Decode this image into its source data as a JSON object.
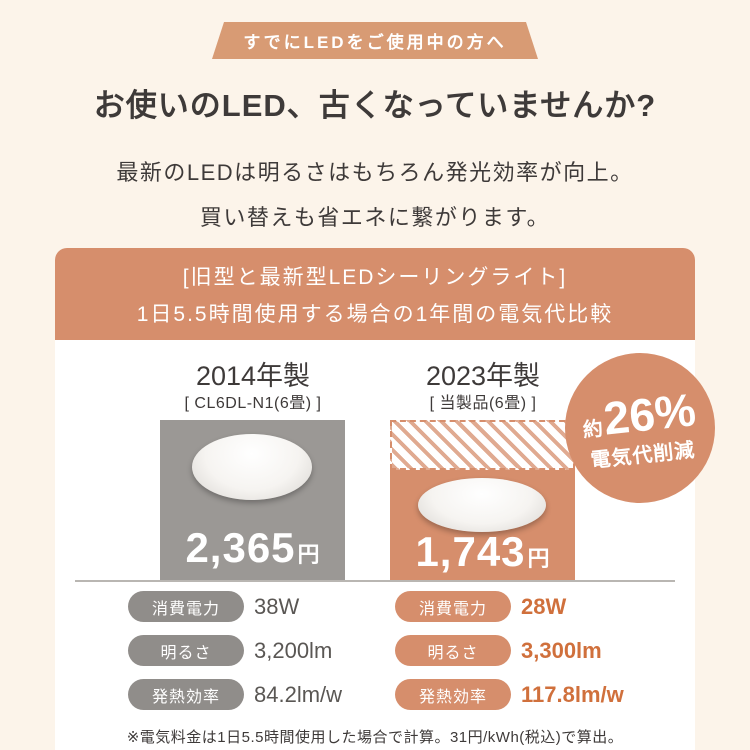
{
  "colors": {
    "background": "#fcf4ea",
    "accent": "#d68e6c",
    "old_gray": "#9b9895",
    "value_orange": "#d0703c"
  },
  "ribbon": {
    "label": "すでにLEDをご使用中の方へ"
  },
  "heading": {
    "title": "お使いのLED、古くなっていませんか?"
  },
  "intro": {
    "line1": "最新のLEDは明るさはもちろん発光効率が向上。",
    "line2": "買い替えも省エネに繋がります。"
  },
  "comparison": {
    "header_line1": "[旧型と最新型LEDシーリングライト]",
    "header_line2": "1日5.5時間使用する場合の1年間の電気代比較",
    "old": {
      "year_label": "2014年製",
      "model": "[ CL6DL-N1(6畳) ]",
      "price_value": "2,365",
      "price_unit": "円",
      "specs": [
        {
          "label": "消費電力",
          "value": "38W"
        },
        {
          "label": "明るさ",
          "value": "3,200lm"
        },
        {
          "label": "発熱効率",
          "value": "84.2lm/w"
        }
      ]
    },
    "new": {
      "year_label": "2023年製",
      "model": "[ 当製品(6畳) ]",
      "price_value": "1,743",
      "price_unit": "円",
      "specs": [
        {
          "label": "消費電力",
          "value": "28W"
        },
        {
          "label": "明るさ",
          "value": "3,300lm"
        },
        {
          "label": "発熱効率",
          "value": "117.8lm/w"
        }
      ]
    },
    "badge": {
      "approx": "約",
      "percent": "26%",
      "label": "電気代削減"
    },
    "footnote": "※電気料金は1日5.5時間使用した場合で計算。31円/kWh(税込)で算出。"
  },
  "chart_data": {
    "type": "bar",
    "title": "[旧型と最新型LEDシーリングライト] 1日5.5時間使用する場合の1年間の電気代比較",
    "categories": [
      "2014年製 [CL6DL-N1(6畳)]",
      "2023年製 [当製品(6畳)]"
    ],
    "values": [
      2365,
      1743
    ],
    "unit": "円",
    "annotation": "約26% 電気代削減",
    "bar_colors": [
      "#9b9895",
      "#d68e6c"
    ],
    "legend_position": "none",
    "grid": false,
    "details": [
      {
        "model_year": "2014年製",
        "model": "CL6DL-N1(6畳)",
        "annual_cost_yen": 2365,
        "power": "38W",
        "brightness": "3,200lm",
        "efficiency": "84.2lm/w"
      },
      {
        "model_year": "2023年製",
        "model": "当製品(6畳)",
        "annual_cost_yen": 1743,
        "power": "28W",
        "brightness": "3,300lm",
        "efficiency": "117.8lm/w"
      }
    ]
  }
}
